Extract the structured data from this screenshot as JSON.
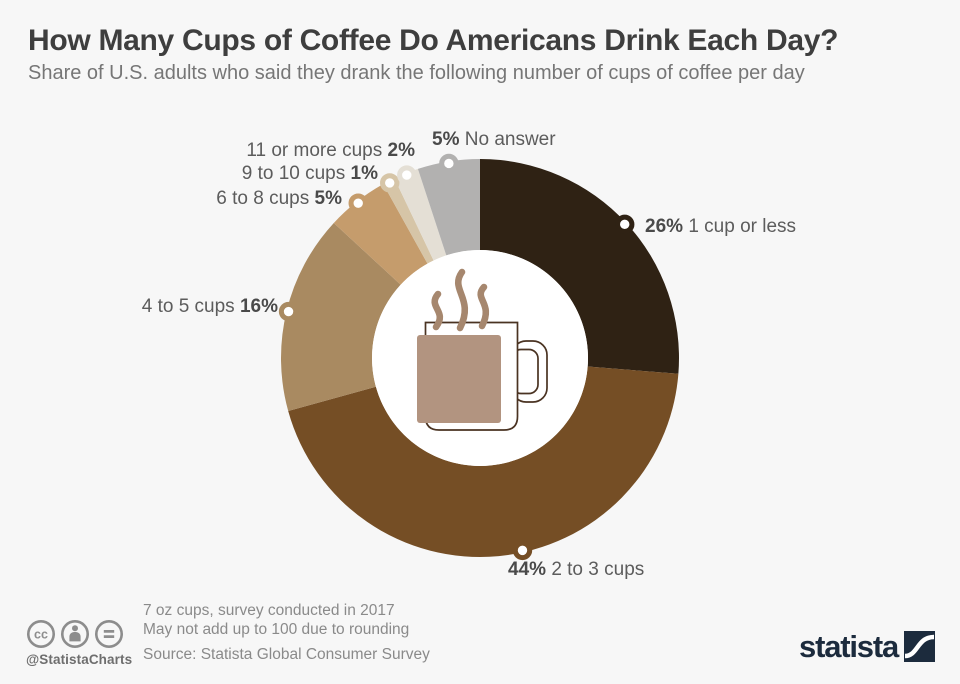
{
  "header": {
    "title": "How Many Cups of Coffee Do Americans Drink Each Day?",
    "subtitle": "Share of U.S. adults who said they drank the following number of cups of coffee per day"
  },
  "chart_data": {
    "type": "pie",
    "subtype": "donut",
    "title": "How Many Cups of Coffee Do Americans Drink Each Day?",
    "unit": "%",
    "start_angle_deg": 0,
    "direction": "clockwise",
    "center_icon": "coffee-mug",
    "slices": [
      {
        "label": "1 cup or less",
        "value": 26,
        "pct_text": "26%",
        "color": "#2f2214",
        "pct_first": true
      },
      {
        "label": "2 to 3 cups",
        "value": 44,
        "pct_text": "44%",
        "color": "#754e25",
        "pct_first": true
      },
      {
        "label": "4 to 5 cups",
        "value": 16,
        "pct_text": "16%",
        "color": "#a98a61",
        "pct_first": false
      },
      {
        "label": "6 to 8 cups",
        "value": 5,
        "pct_text": "5%",
        "color": "#c59c6c",
        "pct_first": false
      },
      {
        "label": "9 to 10 cups",
        "value": 1,
        "pct_text": "1%",
        "color": "#d6c5a7",
        "pct_first": false
      },
      {
        "label": "11 or more cups",
        "value": 2,
        "pct_text": "2%",
        "color": "#e4dfd5",
        "pct_first": false
      },
      {
        "label": "No answer",
        "value": 5,
        "pct_text": "5%",
        "color": "#b2b1b0",
        "pct_first": true
      }
    ]
  },
  "footer": {
    "notes": [
      "7 oz cups, survey conducted in 2017",
      "May not add up to 100 due to rounding"
    ],
    "source": "Source: Statista Global Consumer Survey",
    "credit": "@StatistaCharts",
    "brand": "statista"
  },
  "colors": {
    "background": "#f7f7f7",
    "title": "#3e3e3e",
    "subtitle": "#767676",
    "label_text": "#5c5c5c",
    "footer_text": "#8a8a8a",
    "brand_navy": "#1c2b3d",
    "mug_outline": "#4a3322",
    "mug_coffee": "#b29480",
    "mug_steam": "#a6876e"
  }
}
